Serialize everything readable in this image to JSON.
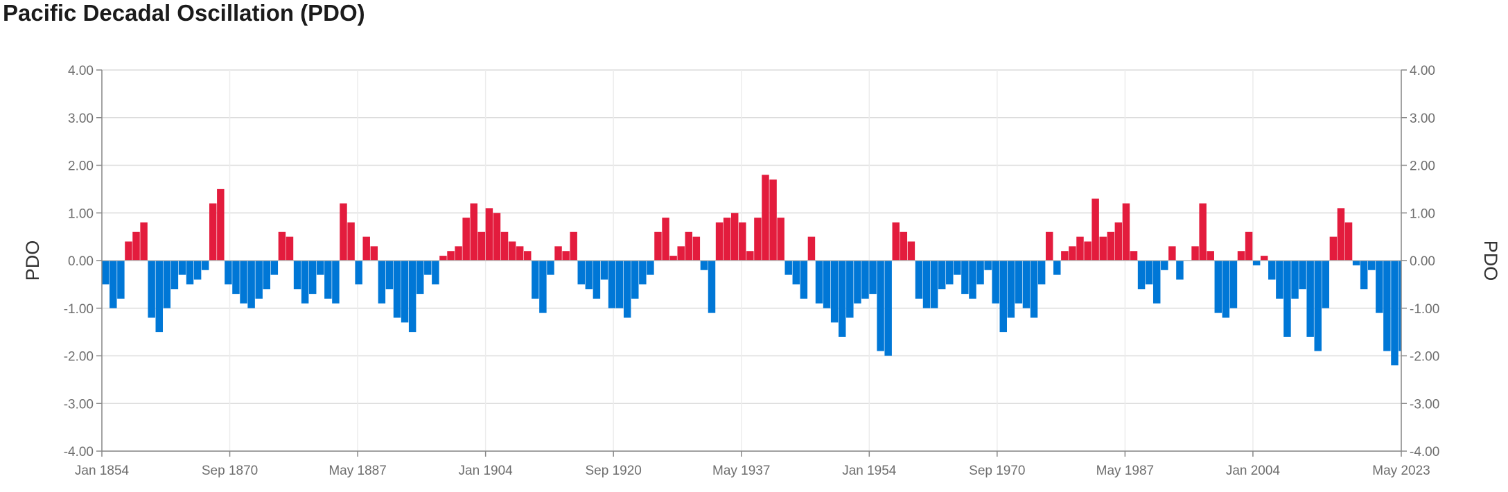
{
  "title": "Pacific Decadal Oscillation (PDO)",
  "chart_data": {
    "type": "bar",
    "title": "Pacific Decadal Oscillation (PDO)",
    "ylabel": "PDO",
    "ylabel_right": "PDO",
    "xlabel": "",
    "ylim": [
      -4,
      4
    ],
    "xlim": [
      "Jan 1854",
      "May 2023"
    ],
    "grid": true,
    "legend": "none",
    "colors": {
      "positive": "#e31c3d",
      "negative": "#0077d6"
    },
    "y_ticks": [
      "4.00",
      "3.00",
      "2.00",
      "1.00",
      "0.00",
      "-1.00",
      "-2.00",
      "-3.00",
      "-4.00"
    ],
    "x_ticks": [
      "Jan 1854",
      "Sep 1870",
      "May 1887",
      "Jan 1904",
      "Sep 1920",
      "May 1937",
      "Jan 1954",
      "Sep 1970",
      "May 1987",
      "Jan 2004",
      "May 2023"
    ],
    "resolution": "annual approximation of monthly values",
    "years": [
      1854,
      1855,
      1856,
      1857,
      1858,
      1859,
      1860,
      1861,
      1862,
      1863,
      1864,
      1865,
      1866,
      1867,
      1868,
      1869,
      1870,
      1871,
      1872,
      1873,
      1874,
      1875,
      1876,
      1877,
      1878,
      1879,
      1880,
      1881,
      1882,
      1883,
      1884,
      1885,
      1886,
      1887,
      1888,
      1889,
      1890,
      1891,
      1892,
      1893,
      1894,
      1895,
      1896,
      1897,
      1898,
      1899,
      1900,
      1901,
      1902,
      1903,
      1904,
      1905,
      1906,
      1907,
      1908,
      1909,
      1910,
      1911,
      1912,
      1913,
      1914,
      1915,
      1916,
      1917,
      1918,
      1919,
      1920,
      1921,
      1922,
      1923,
      1924,
      1925,
      1926,
      1927,
      1928,
      1929,
      1930,
      1931,
      1932,
      1933,
      1934,
      1935,
      1936,
      1937,
      1938,
      1939,
      1940,
      1941,
      1942,
      1943,
      1944,
      1945,
      1946,
      1947,
      1948,
      1949,
      1950,
      1951,
      1952,
      1953,
      1954,
      1955,
      1956,
      1957,
      1958,
      1959,
      1960,
      1961,
      1962,
      1963,
      1964,
      1965,
      1966,
      1967,
      1968,
      1969,
      1970,
      1971,
      1972,
      1973,
      1974,
      1975,
      1976,
      1977,
      1978,
      1979,
      1980,
      1981,
      1982,
      1983,
      1984,
      1985,
      1986,
      1987,
      1988,
      1989,
      1990,
      1991,
      1992,
      1993,
      1994,
      1995,
      1996,
      1997,
      1998,
      1999,
      2000,
      2001,
      2002,
      2003,
      2004,
      2005,
      2006,
      2007,
      2008,
      2009,
      2010,
      2011,
      2012,
      2013,
      2014,
      2015,
      2016,
      2017,
      2018,
      2019,
      2020,
      2021,
      2022,
      2023
    ],
    "values": [
      -0.5,
      -1.0,
      -0.8,
      0.4,
      0.6,
      0.8,
      -1.2,
      -1.5,
      -1.0,
      -0.6,
      -0.3,
      -0.5,
      -0.4,
      -0.2,
      1.2,
      1.5,
      -0.5,
      -0.7,
      -0.9,
      -1.0,
      -0.8,
      -0.6,
      -0.3,
      0.6,
      0.5,
      -0.6,
      -0.9,
      -0.7,
      -0.3,
      -0.8,
      -0.9,
      1.2,
      0.8,
      -0.5,
      0.5,
      0.3,
      -0.9,
      -0.6,
      -1.2,
      -1.3,
      -1.5,
      -0.7,
      -0.3,
      -0.5,
      0.1,
      0.2,
      0.3,
      0.9,
      1.2,
      0.6,
      1.1,
      1.0,
      0.6,
      0.4,
      0.3,
      0.2,
      -0.8,
      -1.1,
      -0.3,
      0.3,
      0.2,
      0.6,
      -0.5,
      -0.6,
      -0.8,
      -0.4,
      -1.0,
      -1.0,
      -1.2,
      -0.8,
      -0.5,
      -0.3,
      0.6,
      0.9,
      0.1,
      0.3,
      0.6,
      0.5,
      -0.2,
      -1.1,
      0.8,
      0.9,
      1.0,
      0.8,
      0.2,
      0.9,
      1.8,
      1.7,
      0.9,
      -0.3,
      -0.5,
      -0.8,
      0.5,
      -0.9,
      -1.0,
      -1.3,
      -1.6,
      -1.2,
      -0.9,
      -0.8,
      -0.7,
      -1.9,
      -2.0,
      0.8,
      0.6,
      0.4,
      -0.8,
      -1.0,
      -1.0,
      -0.6,
      -0.5,
      -0.3,
      -0.7,
      -0.8,
      -0.5,
      -0.2,
      -0.9,
      -1.5,
      -1.2,
      -0.9,
      -1.0,
      -1.2,
      -0.5,
      0.6,
      -0.3,
      0.2,
      0.3,
      0.5,
      0.4,
      1.3,
      0.5,
      0.6,
      0.8,
      1.2,
      0.2,
      -0.6,
      -0.5,
      -0.9,
      -0.2,
      0.3,
      -0.4,
      0.0,
      0.3,
      1.2,
      0.2,
      -1.1,
      -1.2,
      -1.0,
      0.2,
      0.6,
      -0.1,
      0.1,
      -0.4,
      -0.8,
      -1.6,
      -0.8,
      -0.6,
      -1.6,
      -1.9,
      -1.0,
      0.5,
      1.1,
      0.8,
      -0.1,
      -0.6,
      -0.2,
      -1.1,
      -1.9,
      -2.2,
      -1.9
    ]
  }
}
